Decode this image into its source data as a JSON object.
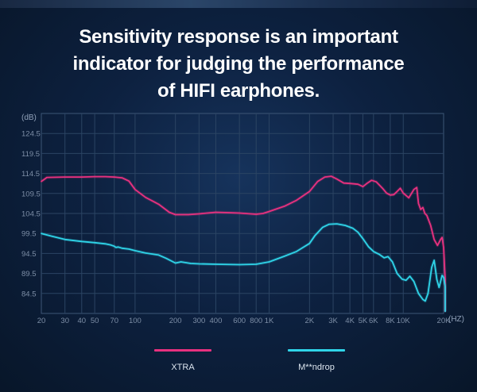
{
  "title_lines": [
    "Sensitivity response is an important",
    "indicator for judging the performance",
    "of HIFI earphones."
  ],
  "chart_data": {
    "type": "line",
    "title": "Sensitivity response is an important indicator for judging the performance of HIFI earphones.",
    "ylabel": "(dB)",
    "xlabel": "(HZ)",
    "x_scale": "log",
    "grid": true,
    "legend_position": "bottom",
    "xlim": [
      20,
      20000
    ],
    "ylim": [
      79.5,
      129.5
    ],
    "y_ticks": [
      124.5,
      119.5,
      114.5,
      109.5,
      104.5,
      99.5,
      94.5,
      89.5,
      84.5
    ],
    "x_ticks": [
      {
        "value": 20,
        "label": "20"
      },
      {
        "value": 30,
        "label": "30"
      },
      {
        "value": 40,
        "label": "40"
      },
      {
        "value": 50,
        "label": "50"
      },
      {
        "value": 70,
        "label": "70"
      },
      {
        "value": 100,
        "label": "100"
      },
      {
        "value": 200,
        "label": "200"
      },
      {
        "value": 300,
        "label": "300"
      },
      {
        "value": 400,
        "label": "400"
      },
      {
        "value": 600,
        "label": "600"
      },
      {
        "value": 800,
        "label": "800"
      },
      {
        "value": 1000,
        "label": "1K"
      },
      {
        "value": 2000,
        "label": "2K"
      },
      {
        "value": 3000,
        "label": "3K"
      },
      {
        "value": 4000,
        "label": "4K"
      },
      {
        "value": 5000,
        "label": "5K"
      },
      {
        "value": 6000,
        "label": "6K"
      },
      {
        "value": 8000,
        "label": "8K"
      },
      {
        "value": 10000,
        "label": "10K"
      },
      {
        "value": 20000,
        "label": "20K"
      }
    ],
    "series": [
      {
        "name": "XTRA",
        "color": "#e8317f",
        "points": [
          [
            20,
            112.5
          ],
          [
            22,
            113.5
          ],
          [
            30,
            113.6
          ],
          [
            40,
            113.6
          ],
          [
            50,
            113.7
          ],
          [
            60,
            113.7
          ],
          [
            70,
            113.6
          ],
          [
            80,
            113.4
          ],
          [
            90,
            112.6
          ],
          [
            100,
            110.5
          ],
          [
            120,
            108.5
          ],
          [
            150,
            106.8
          ],
          [
            180,
            104.8
          ],
          [
            200,
            104.2
          ],
          [
            250,
            104.2
          ],
          [
            300,
            104.4
          ],
          [
            400,
            104.8
          ],
          [
            500,
            104.7
          ],
          [
            600,
            104.6
          ],
          [
            800,
            104.3
          ],
          [
            900,
            104.5
          ],
          [
            1000,
            105.0
          ],
          [
            1300,
            106.3
          ],
          [
            1600,
            107.8
          ],
          [
            2000,
            110.0
          ],
          [
            2300,
            112.5
          ],
          [
            2600,
            113.6
          ],
          [
            2900,
            113.8
          ],
          [
            3200,
            113.1
          ],
          [
            3600,
            112.1
          ],
          [
            4000,
            112.0
          ],
          [
            4600,
            111.8
          ],
          [
            5000,
            111.2
          ],
          [
            5400,
            112.1
          ],
          [
            5800,
            112.8
          ],
          [
            6300,
            112.4
          ],
          [
            7000,
            110.8
          ],
          [
            7500,
            109.6
          ],
          [
            8000,
            109.1
          ],
          [
            8500,
            109.2
          ],
          [
            9000,
            110.0
          ],
          [
            9500,
            110.8
          ],
          [
            10000,
            109.6
          ],
          [
            11000,
            108.4
          ],
          [
            12000,
            110.5
          ],
          [
            12600,
            111.0
          ],
          [
            13000,
            107.0
          ],
          [
            13500,
            105.5
          ],
          [
            14000,
            106.0
          ],
          [
            14500,
            104.5
          ],
          [
            15000,
            104.0
          ],
          [
            16000,
            101.5
          ],
          [
            17000,
            98.0
          ],
          [
            18000,
            96.5
          ],
          [
            19000,
            98.0
          ],
          [
            19500,
            98.5
          ],
          [
            20000,
            96.0
          ],
          [
            21000,
            88.0
          ],
          [
            22000,
            80.0
          ]
        ]
      },
      {
        "name": "M**ndrop",
        "color": "#2fd4e8",
        "points": [
          [
            20,
            99.5
          ],
          [
            24,
            98.8
          ],
          [
            30,
            98.0
          ],
          [
            40,
            97.5
          ],
          [
            50,
            97.2
          ],
          [
            60,
            96.9
          ],
          [
            66,
            96.6
          ],
          [
            70,
            96.3
          ],
          [
            72,
            96.0
          ],
          [
            75,
            96.1
          ],
          [
            80,
            95.8
          ],
          [
            90,
            95.6
          ],
          [
            100,
            95.2
          ],
          [
            120,
            94.6
          ],
          [
            150,
            94.1
          ],
          [
            170,
            93.3
          ],
          [
            200,
            92.1
          ],
          [
            220,
            92.4
          ],
          [
            260,
            92.0
          ],
          [
            300,
            91.9
          ],
          [
            400,
            91.8
          ],
          [
            600,
            91.7
          ],
          [
            800,
            91.8
          ],
          [
            1000,
            92.4
          ],
          [
            1300,
            93.8
          ],
          [
            1600,
            95.0
          ],
          [
            2000,
            97.0
          ],
          [
            2200,
            99.0
          ],
          [
            2500,
            101.0
          ],
          [
            2800,
            101.8
          ],
          [
            3200,
            101.9
          ],
          [
            3700,
            101.5
          ],
          [
            4200,
            100.8
          ],
          [
            4600,
            99.8
          ],
          [
            5000,
            98.2
          ],
          [
            5500,
            96.2
          ],
          [
            6000,
            95.0
          ],
          [
            6600,
            94.3
          ],
          [
            7200,
            93.4
          ],
          [
            7700,
            93.7
          ],
          [
            8300,
            92.4
          ],
          [
            9000,
            89.5
          ],
          [
            9800,
            88.1
          ],
          [
            10500,
            87.8
          ],
          [
            11200,
            88.8
          ],
          [
            12000,
            87.5
          ],
          [
            13000,
            84.5
          ],
          [
            14000,
            83.0
          ],
          [
            14600,
            82.6
          ],
          [
            15300,
            84.5
          ],
          [
            16300,
            91.0
          ],
          [
            17000,
            92.8
          ],
          [
            17800,
            88.0
          ],
          [
            18500,
            86.0
          ],
          [
            19500,
            89.0
          ],
          [
            20000,
            88.5
          ],
          [
            20500,
            86.5
          ],
          [
            21000,
            86.0
          ],
          [
            22000,
            80.0
          ]
        ]
      }
    ]
  }
}
